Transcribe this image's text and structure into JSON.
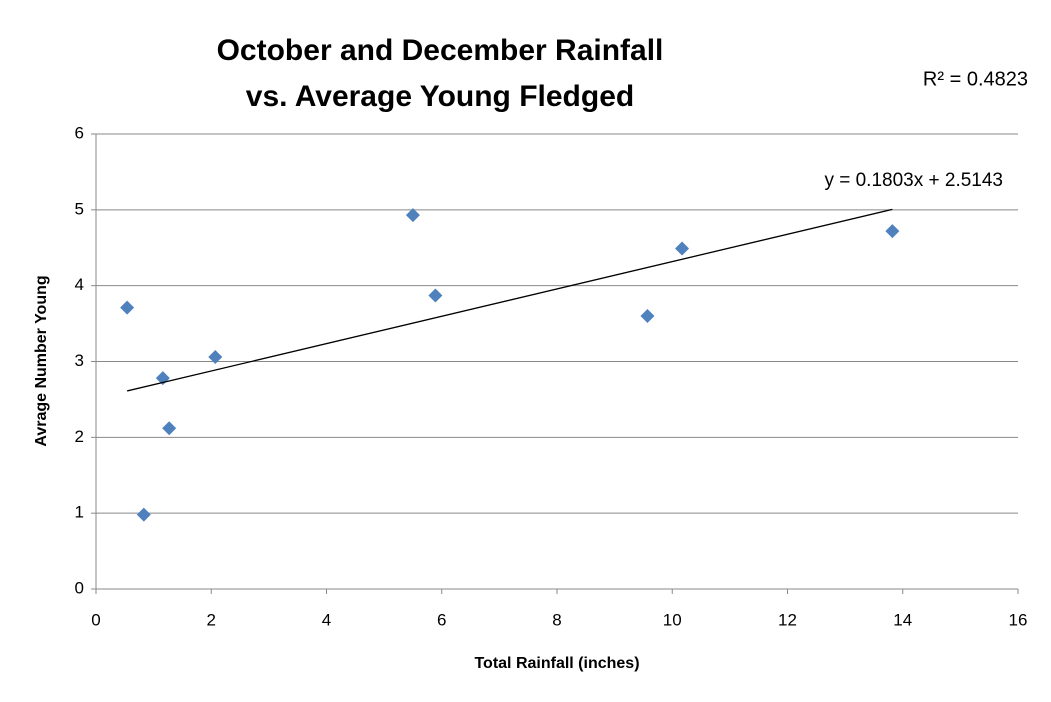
{
  "chart_data": {
    "type": "scatter",
    "title": [
      "October and December Rainfall",
      "vs. Average Young Fledged"
    ],
    "x_label": "Total Rainfall (inches)",
    "y_label": "Avrage Number Young",
    "series": [
      {
        "color": "#4f81bd",
        "x": [
          0.54,
          0.83,
          1.16,
          1.27,
          2.07,
          5.5,
          5.89,
          9.57,
          10.17,
          13.82
        ],
        "values": [
          3.71,
          0.98,
          2.78,
          2.12,
          3.06,
          4.93,
          3.87,
          3.6,
          4.49,
          4.72
        ]
      }
    ],
    "trendline": {
      "slope": 0.1803,
      "intercept": 2.5143,
      "label": "y = 0.1803x + 2.5143",
      "r_squared_label": "R² = 0.4823"
    },
    "xlim": [
      0,
      16
    ],
    "xticks": [
      0,
      2,
      4,
      6,
      8,
      10,
      12,
      14,
      16
    ],
    "ylim": [
      0,
      6
    ],
    "yticks": [
      0,
      1,
      2,
      3,
      4,
      5,
      6
    ],
    "grid": true
  }
}
